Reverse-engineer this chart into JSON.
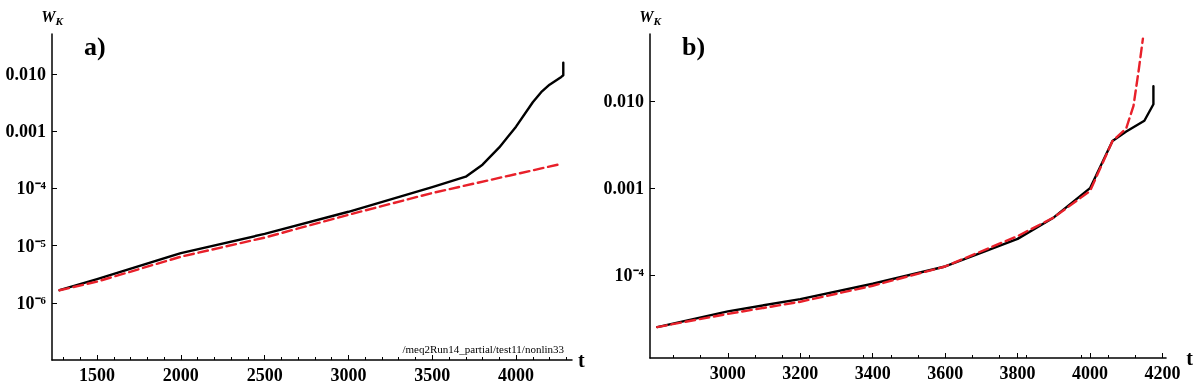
{
  "chart_data": [
    {
      "type": "line",
      "xlabel": "t",
      "ylabel": "W$_{K}$",
      "log": "y",
      "xlim": [
        1231,
        4334
      ],
      "ylim": [
        1e-07,
        0.05
      ],
      "xticks": [
        1500,
        2000,
        2500,
        3000,
        3500,
        4000
      ],
      "yticks": [
        {
          "value": 0.01,
          "label": "0.010"
        },
        {
          "value": 0.001,
          "label": "0.001"
        },
        {
          "value": 0.0001,
          "label": "10⁻⁴"
        },
        {
          "value": 1e-05,
          "label": "10⁻⁵"
        },
        {
          "value": 1e-06,
          "label": "10⁻⁶"
        }
      ],
      "grid": false,
      "marker": "none",
      "annotations": [
        "a)",
        "/meq2Run14_partial/test11/nonlin33"
      ],
      "series": [
        {
          "color": "#000000",
          "line_style": "solid",
          "x": [
            1276,
            1500,
            2000,
            2500,
            3000,
            3500,
            3700,
            3800,
            3900,
            4000,
            4100,
            4150,
            4200,
            4270,
            4282,
            4282
          ],
          "values": [
            1.66e-06,
            2.6e-06,
            7.4e-06,
            1.6e-05,
            3.9e-05,
            0.000105,
            0.00016,
            0.00026,
            0.00052,
            0.0012,
            0.0032,
            0.0048,
            0.0065,
            0.0089,
            0.0095,
            0.0158
          ]
        },
        {
          "color": "#e8202a",
          "line_style": "dashed",
          "x": [
            1276,
            1500,
            2000,
            2500,
            3000,
            3500,
            4250
          ],
          "values": [
            1.66e-06,
            2.35e-06,
            6.4e-06,
            1.38e-05,
            3.46e-05,
            8.3e-05,
            0.00026
          ]
        }
      ]
    },
    {
      "type": "line",
      "xlabel": "t",
      "ylabel": "W$_{K}$",
      "log": "y",
      "xlim": [
        2785,
        4210
      ],
      "ylim": [
        1.1e-05,
        0.06
      ],
      "xticks": [
        3000,
        3200,
        3400,
        3600,
        3800,
        4000,
        4200
      ],
      "yticks": [
        {
          "value": 0.01,
          "label": "0.010"
        },
        {
          "value": 0.001,
          "label": "0.001"
        },
        {
          "value": 0.0001,
          "label": "10⁻⁴"
        }
      ],
      "grid": false,
      "marker": "none",
      "annotations": [
        "b)"
      ],
      "series": [
        {
          "color": "#000000",
          "line_style": "solid",
          "x": [
            2805,
            3000,
            3200,
            3400,
            3600,
            3800,
            3900,
            4000,
            4062,
            4100,
            4150,
            4175,
            4175
          ],
          "values": [
            2.5e-05,
            3.8e-05,
            5.25e-05,
            7.9e-05,
            0.000125,
            0.00026,
            0.00046,
            0.001,
            0.0035,
            0.0045,
            0.006,
            0.0093,
            0.015
          ]
        },
        {
          "color": "#e8202a",
          "line_style": "dashed",
          "x": [
            2805,
            3000,
            3200,
            3400,
            3600,
            3800,
            3900,
            4000,
            4062,
            4100,
            4120,
            4135,
            4146
          ],
          "values": [
            2.5e-05,
            3.55e-05,
            4.9e-05,
            7.5e-05,
            0.000125,
            0.00028,
            0.00046,
            0.00093,
            0.0035,
            0.0049,
            0.0089,
            0.024,
            0.053
          ]
        }
      ]
    }
  ]
}
